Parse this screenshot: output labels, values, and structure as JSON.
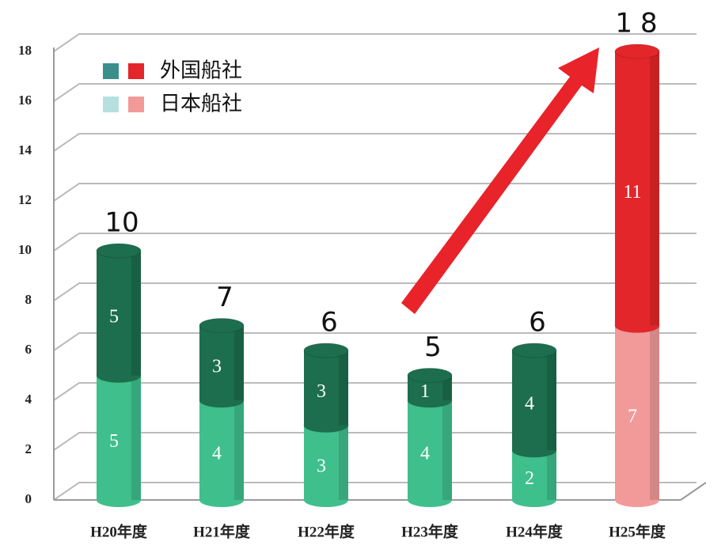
{
  "chart_data": {
    "type": "stacked_cylinder",
    "categories": [
      "H20年度",
      "H21年度",
      "H22年度",
      "H23年度",
      "H24年度",
      "H25年度"
    ],
    "series": [
      {
        "name": "日本船社",
        "legend_color": "#b6e0e0",
        "colors": [
          "#3fbf8c",
          "#3fbf8c",
          "#3fbf8c",
          "#3fbf8c",
          "#3fbf8c",
          "#f29a9a"
        ],
        "values": [
          5,
          4,
          3,
          4,
          2,
          7
        ]
      },
      {
        "name": "外国船社",
        "legend_color": "#3a8f8c",
        "colors": [
          "#1c6e4e",
          "#1c6e4e",
          "#1c6e4e",
          "#1c6e4e",
          "#1c6e4e",
          "#e3262a"
        ],
        "values": [
          5,
          3,
          3,
          1,
          4,
          11
        ]
      }
    ],
    "legend_colors_highlight": [
      "#f29a9a",
      "#e3262a"
    ],
    "annotations": [
      "10",
      "7",
      "6",
      "5",
      "6",
      "18"
    ],
    "ylim": [
      0,
      18
    ],
    "yticks": [
      0,
      2,
      4,
      6,
      8,
      10,
      12,
      14,
      16,
      18
    ],
    "grid": true
  }
}
